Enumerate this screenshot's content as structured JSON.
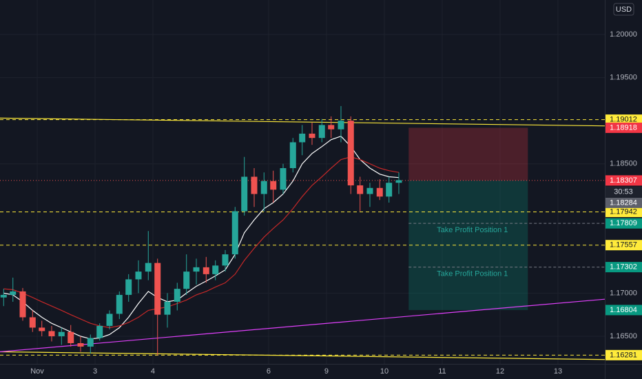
{
  "chart_data": {
    "type": "candlestick",
    "currency": "USD",
    "up_color": "#26a69a",
    "down_color": "#ef5350",
    "x": [
      -0.58,
      -0.42,
      -0.25,
      -0.08,
      0.08,
      0.25,
      0.42,
      0.58,
      0.75,
      0.92,
      1.08,
      1.25,
      1.42,
      1.58,
      1.75,
      1.92,
      2.08,
      2.25,
      2.42,
      2.58,
      2.75,
      2.92,
      3.08,
      3.25,
      3.42,
      3.58,
      3.75,
      3.92,
      4.08,
      4.25,
      4.42,
      4.58,
      4.75,
      4.92,
      5.08,
      5.25,
      5.42,
      5.58,
      5.75,
      5.92,
      6.08,
      6.25
    ],
    "open": [
      1.1695,
      1.1698,
      1.1702,
      1.1672,
      1.166,
      1.1656,
      1.165,
      1.1655,
      1.1642,
      1.1638,
      1.1648,
      1.1662,
      1.1676,
      1.1698,
      1.1716,
      1.1725,
      1.1735,
      1.1675,
      1.169,
      1.1705,
      1.1725,
      1.173,
      1.1722,
      1.1732,
      1.1745,
      1.1795,
      1.1835,
      1.1815,
      1.183,
      1.182,
      1.1845,
      1.1875,
      1.1885,
      1.188,
      1.1895,
      1.189,
      1.19,
      1.1825,
      1.1815,
      1.1822,
      1.1812,
      1.1828
    ],
    "high": [
      1.1705,
      1.1718,
      1.1706,
      1.168,
      1.1668,
      1.1662,
      1.166,
      1.1663,
      1.165,
      1.1652,
      1.1665,
      1.168,
      1.1702,
      1.1722,
      1.1738,
      1.1772,
      1.174,
      1.17,
      1.1712,
      1.1745,
      1.174,
      1.1742,
      1.1738,
      1.175,
      1.18,
      1.1858,
      1.1845,
      1.184,
      1.1842,
      1.185,
      1.188,
      1.1895,
      1.1898,
      1.1902,
      1.1905,
      1.1917,
      1.1905,
      1.1835,
      1.1828,
      1.1832,
      1.1835,
      1.184
    ],
    "low": [
      1.1685,
      1.169,
      1.1668,
      1.1655,
      1.165,
      1.1644,
      1.164,
      1.1638,
      1.1632,
      1.163,
      1.1645,
      1.1658,
      1.167,
      1.169,
      1.17,
      1.1715,
      1.1628,
      1.166,
      1.168,
      1.1698,
      1.171,
      1.1712,
      1.1715,
      1.1725,
      1.174,
      1.179,
      1.18,
      1.1795,
      1.1805,
      1.1815,
      1.184,
      1.186,
      1.1872,
      1.1875,
      1.188,
      1.1875,
      1.1815,
      1.1795,
      1.18,
      1.1808,
      1.1805,
      1.1815
    ],
    "close": [
      1.1698,
      1.1702,
      1.1672,
      1.166,
      1.1656,
      1.165,
      1.1655,
      1.1642,
      1.1638,
      1.1648,
      1.1662,
      1.1676,
      1.1698,
      1.1716,
      1.1725,
      1.1735,
      1.1675,
      1.169,
      1.1705,
      1.1725,
      1.173,
      1.1722,
      1.1732,
      1.1745,
      1.1795,
      1.1835,
      1.1815,
      1.183,
      1.182,
      1.1845,
      1.1875,
      1.1885,
      1.188,
      1.1895,
      1.189,
      1.19,
      1.1825,
      1.1815,
      1.1822,
      1.1812,
      1.1828,
      1.1831
    ],
    "moving_averages": [
      {
        "color": "#ffffff",
        "values": [
          1.17,
          1.1698,
          1.169,
          1.168,
          1.1672,
          1.1665,
          1.166,
          1.1655,
          1.165,
          1.1647,
          1.1648,
          1.1652,
          1.166,
          1.1672,
          1.1688,
          1.1702,
          1.1695,
          1.169,
          1.1692,
          1.17,
          1.1708,
          1.1714,
          1.172,
          1.1727,
          1.1745,
          1.177,
          1.1785,
          1.1798,
          1.1805,
          1.1815,
          1.183,
          1.185,
          1.1862,
          1.187,
          1.1878,
          1.1882,
          1.187,
          1.1855,
          1.1845,
          1.1838,
          1.1835,
          1.1834
        ]
      },
      {
        "color": "#c62828",
        "values": [
          1.1705,
          1.1704,
          1.17,
          1.1695,
          1.169,
          1.1685,
          1.168,
          1.1675,
          1.167,
          1.1665,
          1.1662,
          1.166,
          1.1662,
          1.1666,
          1.1672,
          1.168,
          1.1682,
          1.1684,
          1.1688,
          1.1692,
          1.1698,
          1.1702,
          1.1707,
          1.1712,
          1.1722,
          1.1738,
          1.1752,
          1.1765,
          1.1775,
          1.1785,
          1.1798,
          1.1812,
          1.1825,
          1.1835,
          1.1845,
          1.1855,
          1.1858,
          1.1855,
          1.185,
          1.1845,
          1.1842,
          1.184
        ]
      }
    ],
    "xlim": [
      -0.643,
      9.81
    ],
    "ylim": [
      1.1618,
      1.204
    ],
    "xticks": [
      {
        "value": 0,
        "label": "Nov"
      },
      {
        "value": 1,
        "label": "3"
      },
      {
        "value": 2,
        "label": "4"
      },
      {
        "value": 4,
        "label": "6"
      },
      {
        "value": 5,
        "label": "9"
      },
      {
        "value": 6,
        "label": "10"
      },
      {
        "value": 7,
        "label": "11"
      },
      {
        "value": 8,
        "label": "12"
      },
      {
        "value": 9,
        "label": "13"
      }
    ],
    "yticks": [
      {
        "value": 1.165,
        "label": "1.16500"
      },
      {
        "value": 1.17,
        "label": "1.17000"
      },
      {
        "value": 1.185,
        "label": "1.18500"
      },
      {
        "value": 1.195,
        "label": "1.19500"
      },
      {
        "value": 1.2,
        "label": "1.20000"
      }
    ],
    "grid": true,
    "levels": [
      {
        "value": 1.19012,
        "color": "#ffeb3b"
      },
      {
        "value": 1.17942,
        "color": "#ffeb3b"
      },
      {
        "value": 1.17557,
        "color": "#ffeb3b"
      },
      {
        "value": 1.16281,
        "color": "#ffeb3b"
      }
    ],
    "trendlines": [
      {
        "color": "#ffeb3b",
        "x": [
          -0.643,
          9.81
        ],
        "y": [
          1.1903,
          1.1894
        ]
      },
      {
        "color": "#ffeb3b",
        "x": [
          -0.643,
          9.81
        ],
        "y": [
          1.1632,
          1.1623
        ]
      },
      {
        "color": "#e040fb",
        "x": [
          -0.643,
          9.81
        ],
        "y": [
          1.1632,
          1.1693
        ]
      }
    ],
    "position": {
      "stop": 1.18918,
      "entry": 1.18307,
      "target": 1.16804,
      "x_start": 6.42,
      "x_end": 8.48,
      "take_profits": [
        {
          "value": 1.17809,
          "label": "Take Profit Position 1"
        },
        {
          "value": 1.17302,
          "label": "Take Profit Position 1"
        }
      ]
    },
    "countdown": "30:53",
    "current_price": 1.18284
  }
}
